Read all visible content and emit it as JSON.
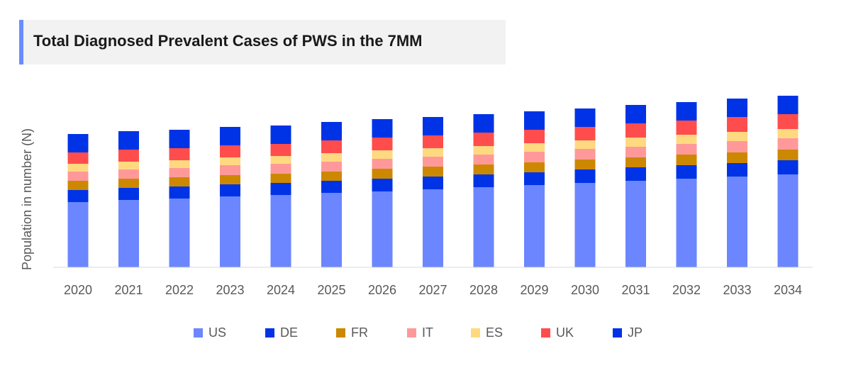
{
  "title": "Total Diagnosed Prevalent Cases of PWS in the 7MM",
  "chart_data": {
    "type": "bar",
    "stacked": true,
    "title": "Total Diagnosed Prevalent Cases of PWS in the 7MM",
    "xlabel": "",
    "ylabel": "Population in number (N)",
    "y_axis_tick_labels_shown": false,
    "grid": false,
    "legend_position": "bottom",
    "categories": [
      "2020",
      "2021",
      "2022",
      "2023",
      "2024",
      "2025",
      "2026",
      "2027",
      "2028",
      "2029",
      "2030",
      "2031",
      "2032",
      "2033",
      "2034"
    ],
    "series": [
      {
        "name": "US",
        "color": "#6b86ff",
        "values": [
          92,
          95,
          97,
          100,
          102,
          105,
          107,
          110,
          113,
          116,
          119,
          122,
          125,
          128,
          131
        ]
      },
      {
        "name": "DE",
        "color": "#0033e6",
        "values": [
          17,
          17,
          17,
          17,
          17,
          17,
          18,
          18,
          18,
          18,
          19,
          19,
          19,
          19,
          20
        ]
      },
      {
        "name": "FR",
        "color": "#cc8800",
        "values": [
          13,
          13,
          13,
          13,
          13,
          13,
          14,
          14,
          14,
          14,
          14,
          14,
          15,
          15,
          15
        ]
      },
      {
        "name": "IT",
        "color": "#ff9999",
        "values": [
          13,
          13,
          13,
          14,
          14,
          14,
          14,
          14,
          14,
          15,
          15,
          15,
          15,
          16,
          16
        ]
      },
      {
        "name": "ES",
        "color": "#ffd980",
        "values": [
          11,
          11,
          11,
          11,
          11,
          12,
          12,
          12,
          12,
          12,
          12,
          13,
          13,
          13,
          13
        ]
      },
      {
        "name": "UK",
        "color": "#ff4d4d",
        "values": [
          16,
          17,
          17,
          17,
          17,
          18,
          18,
          18,
          19,
          19,
          19,
          20,
          20,
          21,
          21
        ]
      },
      {
        "name": "JP",
        "color": "#0033e6",
        "values": [
          26,
          26,
          26,
          26,
          26,
          26,
          26,
          26,
          26,
          26,
          26,
          26,
          26,
          26,
          26
        ]
      }
    ]
  }
}
